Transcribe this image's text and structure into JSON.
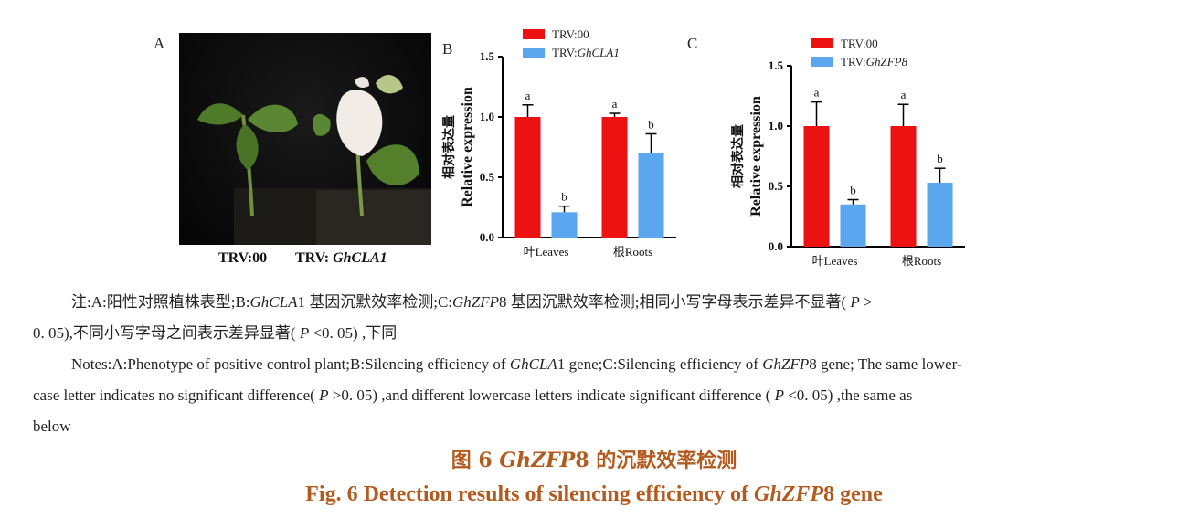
{
  "panels": {
    "a_letter": "A",
    "b_letter": "B",
    "c_letter": "C",
    "photo_caption_left": "TRV:00",
    "photo_caption_right_prefix": "TRV: ",
    "photo_caption_right_gene": "GhCLA1"
  },
  "chart_data": [
    {
      "type": "bar",
      "panel": "B",
      "ylabel_cn": "相对表达量",
      "ylabel": "Relative expression",
      "ylim": [
        0,
        1.5
      ],
      "yticks": [
        "0.0",
        "0.5",
        "1.0",
        "1.5"
      ],
      "categories": [
        "叶Leaves",
        "根Roots"
      ],
      "legend": "top",
      "series": [
        {
          "name": "TRV:00",
          "color": "#ee1111",
          "values": [
            1.0,
            1.0
          ],
          "errors": [
            0.1,
            0.03
          ],
          "letters": [
            "a",
            "a"
          ]
        },
        {
          "name": "TRV:GhCLA1",
          "name_prefix": "TRV:",
          "name_gene": "GhCLA1",
          "color": "#5aa7f0",
          "values": [
            0.21,
            0.7
          ],
          "errors": [
            0.05,
            0.16
          ],
          "letters": [
            "b",
            "b"
          ]
        }
      ]
    },
    {
      "type": "bar",
      "panel": "C",
      "ylabel_cn": "相对表达量",
      "ylabel": "Relative expression",
      "ylim": [
        0,
        1.5
      ],
      "yticks": [
        "0.0",
        "0.5",
        "1.0",
        "1.5"
      ],
      "categories": [
        "叶Leaves",
        "根Roots"
      ],
      "legend": "top",
      "series": [
        {
          "name": "TRV:00",
          "color": "#ee1111",
          "values": [
            1.0,
            1.0
          ],
          "errors": [
            0.2,
            0.18
          ],
          "letters": [
            "a",
            "a"
          ]
        },
        {
          "name": "TRV:GhZFP8",
          "name_prefix": "TRV:",
          "name_gene": "GhZFP8",
          "color": "#5aa7f0",
          "values": [
            0.35,
            0.53
          ],
          "errors": [
            0.04,
            0.12
          ],
          "letters": [
            "b",
            "b"
          ]
        }
      ]
    }
  ],
  "notes": {
    "cn_line1_parts": [
      "注:A:阳性对照植株表型;B:",
      "GhCLA",
      "1 基因沉默效率检测;C:",
      "GhZFP",
      "8 基因沉默效率检测;相同小写字母表示差异不显著( ",
      "P",
      " >"
    ],
    "cn_line2_parts": [
      "0. 05),不同小写字母之间表示差异显著( ",
      "P",
      " <0. 05) ,下同"
    ],
    "en_line1_parts": [
      "Notes:A:Phenotype of positive control plant;B:Silencing efficiency of ",
      "GhCLA",
      "1 gene;C:Silencing efficiency of ",
      "GhZFP",
      "8 gene; The same lower-"
    ],
    "en_line2_parts": [
      "case letter indicates no significant difference( ",
      "P",
      " >0. 05) ,and different lowercase letters indicate significant difference ( ",
      "P",
      " <0. 05) ,the same as"
    ],
    "en_line3": "below"
  },
  "caption": {
    "cn_prefix": "图 6 ",
    "cn_gene": "GhZFP",
    "cn_suffix": "8 的沉默效率检测",
    "en_prefix": "Fig. 6 Detection results of silencing efficiency of ",
    "en_gene": "GhZFP",
    "en_suffix": "8 gene"
  }
}
